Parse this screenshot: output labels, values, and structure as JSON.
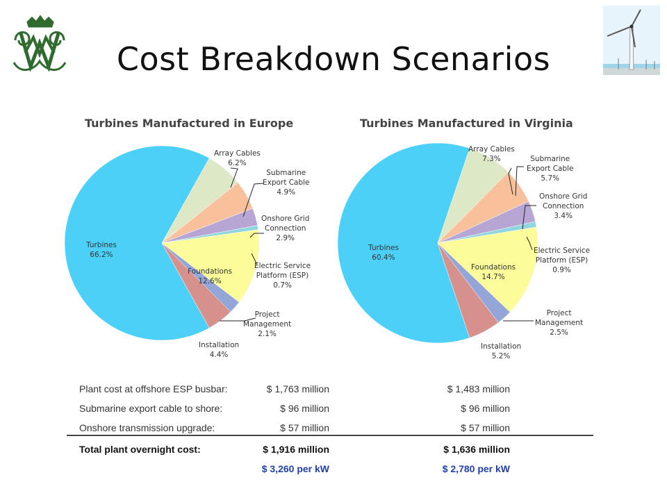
{
  "slide": {
    "title": "Cost Breakdown Scenarios"
  },
  "logo": {
    "name": "wm-cypher-logo"
  },
  "chart_data": [
    {
      "type": "pie",
      "title": "Turbines Manufactured in Europe",
      "slices": [
        {
          "name": "Turbines",
          "value": 66.2,
          "label": "66.2%",
          "color": "#4dd0f7"
        },
        {
          "name": "Array Cables",
          "value": 6.2,
          "label": "6.2%",
          "color": "#dde8c6"
        },
        {
          "name": "Submarine Export Cable",
          "value": 4.9,
          "label": "4.9%",
          "color": "#f8c19c"
        },
        {
          "name": "Onshore Grid Connection",
          "value": 2.9,
          "label": "2.9%",
          "color": "#b7a5d3"
        },
        {
          "name": "Electric Service Platform (ESP)",
          "value": 0.7,
          "label": "0.7%",
          "color": "#8fd6e0"
        },
        {
          "name": "Foundations",
          "value": 12.6,
          "label": "12.6%",
          "color": "#fdfc9a"
        },
        {
          "name": "Project Management",
          "value": 2.1,
          "label": "2.1%",
          "color": "#94a6d7"
        },
        {
          "name": "Installation",
          "value": 4.4,
          "label": "4.4%",
          "color": "#d6918d"
        }
      ]
    },
    {
      "type": "pie",
      "title": "Turbines Manufactured in Virginia",
      "slices": [
        {
          "name": "Turbines",
          "value": 60.4,
          "label": "60.4%",
          "color": "#4dd0f7"
        },
        {
          "name": "Array Cables",
          "value": 7.3,
          "label": "7.3%",
          "color": "#dde8c6"
        },
        {
          "name": "Submarine Export Cable",
          "value": 5.7,
          "label": "5.7%",
          "color": "#f8c19c"
        },
        {
          "name": "Onshore Grid Connection",
          "value": 3.4,
          "label": "3.4%",
          "color": "#b7a5d3"
        },
        {
          "name": "Electric Service Platform (ESP)",
          "value": 0.9,
          "label": "0.9%",
          "color": "#8fd6e0"
        },
        {
          "name": "Foundations",
          "value": 14.7,
          "label": "14.7%",
          "color": "#fdfc9a"
        },
        {
          "name": "Project Management",
          "value": 2.5,
          "label": "2.5%",
          "color": "#94a6d7"
        },
        {
          "name": "Installation",
          "value": 5.2,
          "label": "5.2%",
          "color": "#d6918d"
        }
      ]
    }
  ],
  "labels": {
    "europe": {
      "turbines": [
        "Turbines",
        "66.2%"
      ],
      "array": [
        "Array Cables",
        "6.2%"
      ],
      "submarine": [
        "Submarine",
        "Export Cable",
        "4.9%"
      ],
      "onshore": [
        "Onshore Grid",
        "Connection",
        "2.9%"
      ],
      "esp": [
        "Electric Service",
        "Platform (ESP)",
        "0.7%"
      ],
      "foundations": [
        "Foundations",
        "12.6%"
      ],
      "pm": [
        "Project",
        "Management",
        "2.1%"
      ],
      "installation": [
        "Installation",
        "4.4%"
      ]
    },
    "virginia": {
      "turbines": [
        "Turbines",
        "60.4%"
      ],
      "array": [
        "Array Cables",
        "7.3%"
      ],
      "submarine": [
        "Submarine",
        "Export Cable",
        "5.7%"
      ],
      "onshore": [
        "Onshore Grid",
        "Connection",
        "3.4%"
      ],
      "esp": [
        "Electric Service",
        "Platform (ESP)",
        "0.9%"
      ],
      "foundations": [
        "Foundations",
        "14.7%"
      ],
      "pm": [
        "Project",
        "Management",
        "2.5%"
      ],
      "installation": [
        "Installation",
        "5.2%"
      ]
    }
  },
  "cost_table": {
    "rows": [
      {
        "label": "Plant cost at offshore ESP busbar:",
        "europe": "$ 1,763 million",
        "virginia": "$ 1,483 million"
      },
      {
        "label": "Submarine export cable to shore:",
        "europe": "$ 96 million",
        "virginia": "$ 96 million"
      },
      {
        "label": "Onshore transmission upgrade:",
        "europe": "$ 57 million",
        "virginia": "$ 57 million"
      }
    ],
    "total": {
      "label": "Total plant overnight cost:",
      "europe": "$ 1,916 million",
      "virginia": "$ 1,636 million"
    },
    "per_kw": {
      "europe": "$ 3,260 per kW",
      "virginia": "$ 2,780 per kW"
    }
  }
}
